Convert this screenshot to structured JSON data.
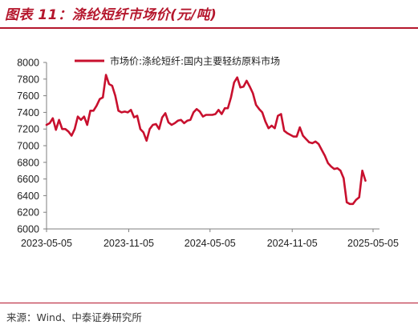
{
  "header": {
    "title": "图表 11：涤纶短纤市场价(元/吨)"
  },
  "footer": {
    "source": "来源：Wind、中泰证券研究所"
  },
  "colors": {
    "accent": "#b5172d",
    "series": "#c8102e",
    "axis": "#7f7f7f"
  },
  "chart_data": {
    "type": "line",
    "title": "",
    "xlabel": "",
    "ylabel": "",
    "ylim": [
      6000,
      8000
    ],
    "yticks": [
      6000,
      6200,
      6400,
      6600,
      6800,
      7000,
      7200,
      7400,
      7600,
      7800,
      8000
    ],
    "xticks": [
      "2023-05-05",
      "2023-11-05",
      "2024-05-05",
      "2024-11-05",
      "2025-05-05"
    ],
    "grid": false,
    "legend": "top",
    "series": [
      {
        "name": "市场价:涤纶短纤:国内主要轻纺原料市场",
        "points": [
          [
            "2023-05-05",
            7250
          ],
          [
            "2023-05-12",
            7270
          ],
          [
            "2023-05-19",
            7330
          ],
          [
            "2023-05-26",
            7190
          ],
          [
            "2023-06-02",
            7310
          ],
          [
            "2023-06-09",
            7200
          ],
          [
            "2023-06-16",
            7200
          ],
          [
            "2023-06-23",
            7170
          ],
          [
            "2023-06-30",
            7120
          ],
          [
            "2023-07-07",
            7200
          ],
          [
            "2023-07-14",
            7350
          ],
          [
            "2023-07-21",
            7310
          ],
          [
            "2023-07-28",
            7350
          ],
          [
            "2023-08-04",
            7250
          ],
          [
            "2023-08-11",
            7420
          ],
          [
            "2023-08-18",
            7420
          ],
          [
            "2023-08-25",
            7480
          ],
          [
            "2023-09-01",
            7560
          ],
          [
            "2023-09-08",
            7580
          ],
          [
            "2023-09-15",
            7850
          ],
          [
            "2023-09-22",
            7740
          ],
          [
            "2023-09-29",
            7720
          ],
          [
            "2023-10-06",
            7600
          ],
          [
            "2023-10-13",
            7420
          ],
          [
            "2023-10-20",
            7400
          ],
          [
            "2023-10-27",
            7410
          ],
          [
            "2023-11-03",
            7400
          ],
          [
            "2023-11-10",
            7430
          ],
          [
            "2023-11-17",
            7340
          ],
          [
            "2023-11-24",
            7360
          ],
          [
            "2023-12-01",
            7200
          ],
          [
            "2023-12-08",
            7160
          ],
          [
            "2023-12-15",
            7060
          ],
          [
            "2023-12-22",
            7200
          ],
          [
            "2023-12-29",
            7250
          ],
          [
            "2024-01-05",
            7260
          ],
          [
            "2024-01-12",
            7200
          ],
          [
            "2024-01-19",
            7340
          ],
          [
            "2024-01-26",
            7390
          ],
          [
            "2024-02-02",
            7280
          ],
          [
            "2024-02-09",
            7250
          ],
          [
            "2024-02-16",
            7270
          ],
          [
            "2024-02-23",
            7300
          ],
          [
            "2024-03-01",
            7310
          ],
          [
            "2024-03-08",
            7270
          ],
          [
            "2024-03-15",
            7300
          ],
          [
            "2024-03-22",
            7310
          ],
          [
            "2024-03-29",
            7400
          ],
          [
            "2024-04-05",
            7440
          ],
          [
            "2024-04-12",
            7410
          ],
          [
            "2024-04-19",
            7350
          ],
          [
            "2024-04-26",
            7370
          ],
          [
            "2024-05-03",
            7370
          ],
          [
            "2024-05-10",
            7370
          ],
          [
            "2024-05-17",
            7380
          ],
          [
            "2024-05-24",
            7430
          ],
          [
            "2024-05-31",
            7380
          ],
          [
            "2024-06-07",
            7450
          ],
          [
            "2024-06-14",
            7450
          ],
          [
            "2024-06-21",
            7580
          ],
          [
            "2024-06-28",
            7760
          ],
          [
            "2024-07-05",
            7820
          ],
          [
            "2024-07-12",
            7700
          ],
          [
            "2024-07-19",
            7710
          ],
          [
            "2024-07-26",
            7780
          ],
          [
            "2024-08-02",
            7710
          ],
          [
            "2024-08-09",
            7630
          ],
          [
            "2024-08-16",
            7490
          ],
          [
            "2024-08-23",
            7440
          ],
          [
            "2024-08-30",
            7400
          ],
          [
            "2024-09-06",
            7290
          ],
          [
            "2024-09-13",
            7210
          ],
          [
            "2024-09-20",
            7240
          ],
          [
            "2024-09-27",
            7210
          ],
          [
            "2024-10-04",
            7360
          ],
          [
            "2024-10-11",
            7380
          ],
          [
            "2024-10-18",
            7180
          ],
          [
            "2024-10-25",
            7150
          ],
          [
            "2024-11-01",
            7130
          ],
          [
            "2024-11-08",
            7110
          ],
          [
            "2024-11-15",
            7110
          ],
          [
            "2024-11-22",
            7220
          ],
          [
            "2024-11-29",
            7120
          ],
          [
            "2024-12-06",
            7080
          ],
          [
            "2024-12-13",
            7040
          ],
          [
            "2024-12-20",
            7030
          ],
          [
            "2024-12-27",
            7050
          ],
          [
            "2025-01-03",
            7020
          ],
          [
            "2025-01-10",
            6950
          ],
          [
            "2025-01-17",
            6880
          ],
          [
            "2025-01-24",
            6790
          ],
          [
            "2025-01-31",
            6750
          ],
          [
            "2025-02-07",
            6720
          ],
          [
            "2025-02-14",
            6730
          ],
          [
            "2025-02-21",
            6700
          ],
          [
            "2025-02-28",
            6610
          ],
          [
            "2025-03-07",
            6320
          ],
          [
            "2025-03-14",
            6300
          ],
          [
            "2025-03-21",
            6300
          ],
          [
            "2025-03-28",
            6350
          ],
          [
            "2025-04-04",
            6380
          ],
          [
            "2025-04-11",
            6700
          ],
          [
            "2025-04-18",
            6580
          ]
        ]
      }
    ]
  }
}
